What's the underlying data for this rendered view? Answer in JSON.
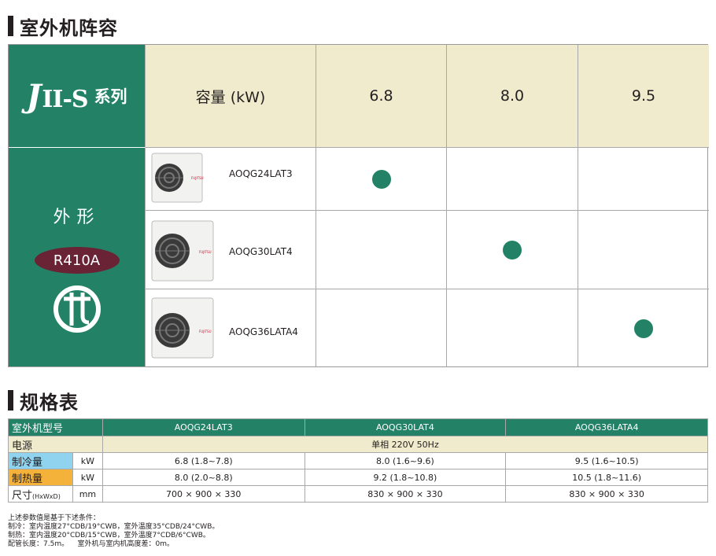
{
  "lineup_section": {
    "title": "室外机阵容"
  },
  "spec_section": {
    "title": "规格表"
  },
  "lineup": {
    "series_logo": "J",
    "series_roman": "II-S",
    "series_suffix": "系列",
    "capacity_label": "容量 (kW)",
    "capacities": [
      "6.8",
      "8.0",
      "9.5"
    ],
    "appearance_label": "外形",
    "refrigerant_badge": "R410A",
    "emblem_icon": "energy-mark-icon",
    "models": [
      {
        "name": "AOQG24LAT3",
        "capacity_index": 0,
        "brand": "FUJITSU"
      },
      {
        "name": "AOQG30LAT4",
        "capacity_index": 1,
        "brand": "FUJITSU"
      },
      {
        "name": "AOQG36LATA4",
        "capacity_index": 2,
        "brand": "FUJITSU"
      }
    ],
    "colors": {
      "green": "#238266",
      "cream": "#efebcc",
      "badge": "#6a2235"
    }
  },
  "spec": {
    "header_label": "室外机型号",
    "models": [
      "AOQG24LAT3",
      "AOQG30LAT4",
      "AOQG36LATA4"
    ],
    "power_label": "电源",
    "power_value": "单相 220V 50Hz",
    "cooling_label": "制冷量",
    "cooling_unit": "kW",
    "cooling_values": [
      "6.8 (1.8~7.8)",
      "8.0 (1.6~9.6)",
      "9.5 (1.6~10.5)"
    ],
    "heating_label": "制热量",
    "heating_unit": "kW",
    "heating_values": [
      "8.0 (2.0~8.8)",
      "9.2 (1.8~10.8)",
      "10.5 (1.8~11.6)"
    ],
    "size_label": "尺寸",
    "size_sub": "(HxWxD)",
    "size_unit": "mm",
    "size_values": [
      "700 × 900 × 330",
      "830 × 900 × 330",
      "830 × 900 × 330"
    ]
  },
  "notes": [
    "上述参数值是基于下述条件：",
    "制冷：室内温度27°CDB/19°CWB，室外温度35°CDB/24°CWB。",
    "制热：室内温度20°CDB/15°CWB，室外温度7°CDB/6°CWB。",
    "配管长度：7.5m。    室外机与室内机高度差：0m。"
  ]
}
